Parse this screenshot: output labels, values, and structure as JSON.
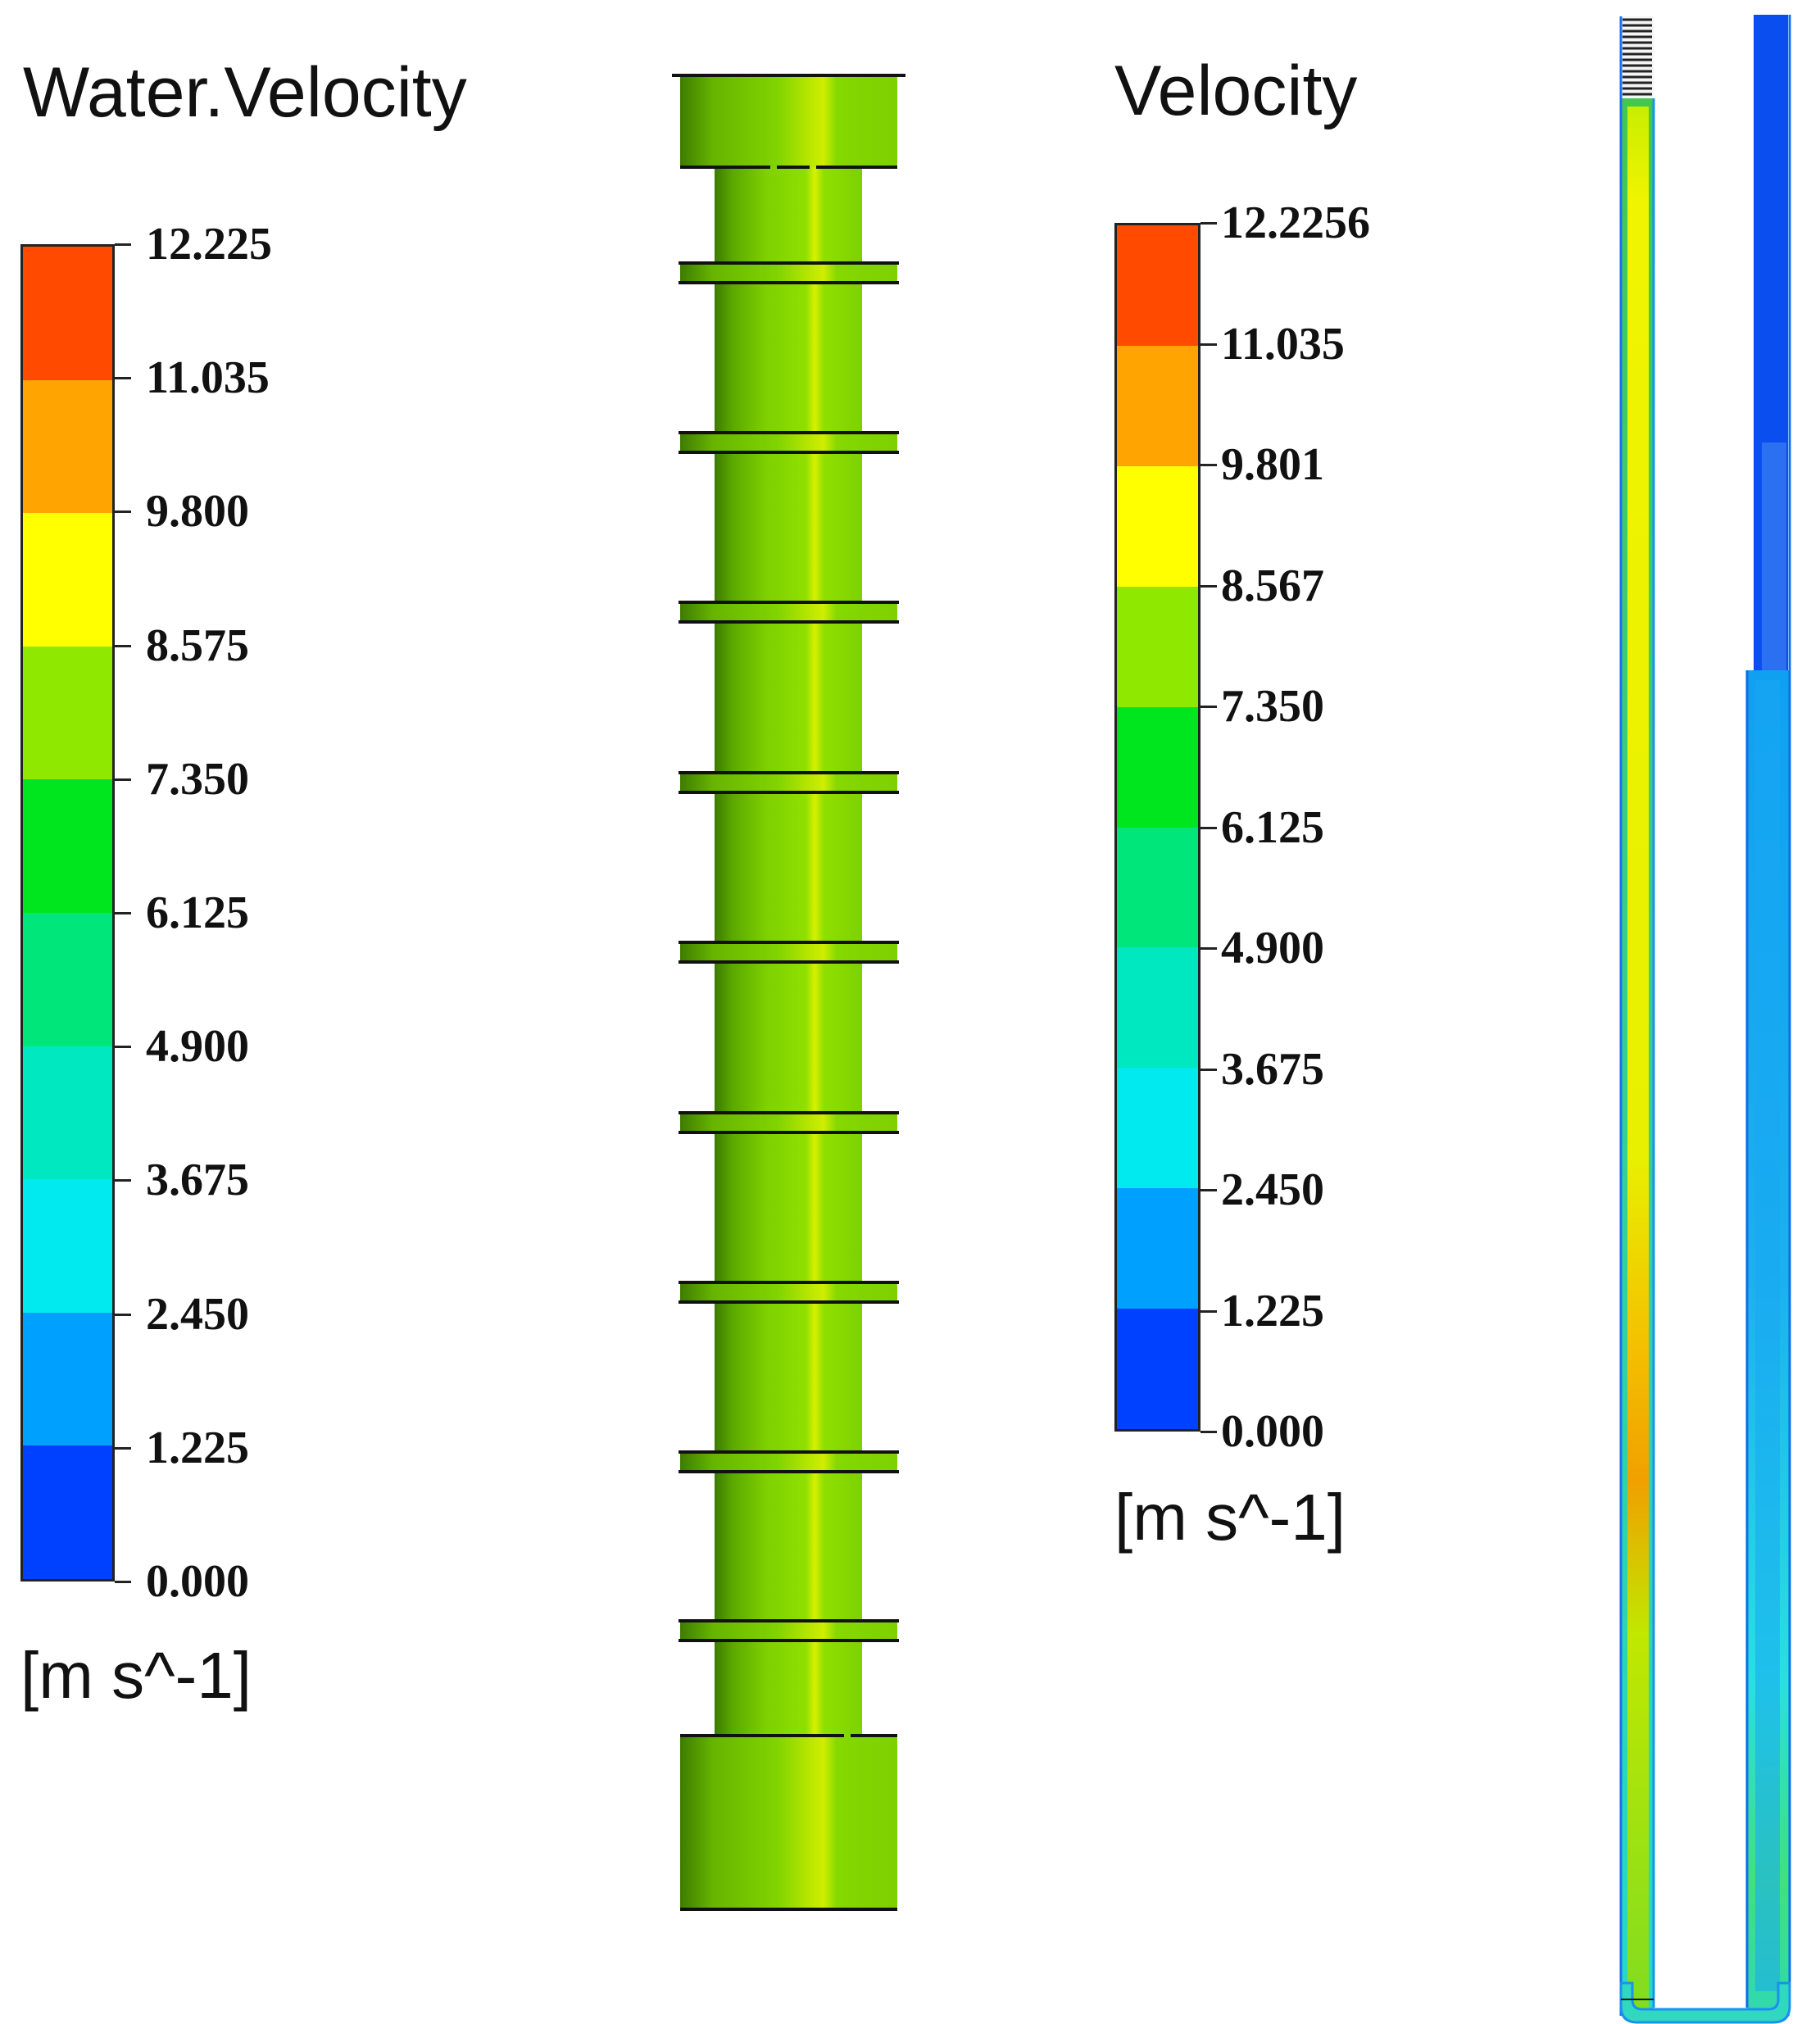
{
  "legend_left": {
    "title": "Water.Velocity",
    "unit": "[m s^-1]",
    "tick_labels": [
      "12.225",
      "11.035",
      "9.800",
      "8.575",
      "7.350",
      "6.125",
      "4.900",
      "3.675",
      "2.450",
      "1.225",
      "0.000"
    ]
  },
  "legend_right": {
    "title": "Velocity",
    "unit": "[m s^-1]",
    "tick_labels": [
      "12.2256",
      "11.035",
      "9.801",
      "8.567",
      "7.350",
      "6.125",
      "4.900",
      "3.675",
      "2.450",
      "1.225",
      "0.000"
    ]
  },
  "band_colors_top_to_bottom": [
    "#ff4a00",
    "#ffa400",
    "#ffff00",
    "#8fe800",
    "#00e61e",
    "#00e67a",
    "#00e8c0",
    "#00eaf0",
    "#00a0ff",
    "#0040ff"
  ],
  "pipe_colors": {
    "inner_flow": "#e8f000",
    "outer_flow": "#18a8f0",
    "upper_outer": "#0a4ef0",
    "shaft": "#7ed000"
  }
}
